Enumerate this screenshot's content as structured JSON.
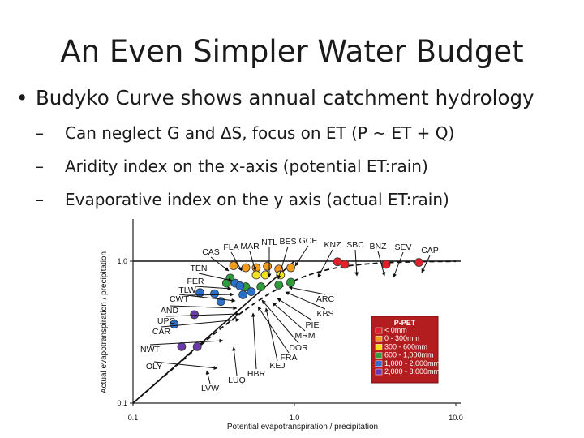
{
  "title": "An Even Simpler Water Budget",
  "bullet": "Budyko Curve shows annual catchment hydrology",
  "subs": [
    "Can neglect G and ΔS, focus on ET (P ~ ET + Q)",
    "Aridity index on the x-axis (potential ET:rain)",
    "Evaporative index on the y axis (actual ET:rain)"
  ],
  "chart_data": {
    "type": "scatter",
    "xlabel": "Potential evapotranspiration / precipitation",
    "ylabel": "Actual evapotranspiration / precipitation",
    "x_scale": "log",
    "y_scale": "log",
    "xlim": [
      0.1,
      10.0
    ],
    "ylim": [
      0.1,
      1.0
    ],
    "x_ticks": [
      "0.1",
      "1.0",
      "10.0"
    ],
    "y_ticks": [
      "0.1",
      "1.0"
    ],
    "legend": {
      "title": "P-PET",
      "placement": "right",
      "entries": [
        {
          "label": "< 0mm",
          "color": "#e0202a"
        },
        {
          "label": "0 - 300mm",
          "color": "#f29a1c"
        },
        {
          "label": "300 - 600mm",
          "color": "#f2e11c"
        },
        {
          "label": "600 - 1,000mm",
          "color": "#2e9e3a"
        },
        {
          "label": "1,000 - 2,000mm",
          "color": "#2a6fc9"
        },
        {
          "label": "2,000 - 3,000mm",
          "color": "#6a3aa8"
        }
      ]
    },
    "points": [
      {
        "x": 0.42,
        "y": 0.93,
        "group": "0 - 300mm"
      },
      {
        "x": 0.5,
        "y": 0.9,
        "group": "0 - 300mm"
      },
      {
        "x": 0.58,
        "y": 0.9,
        "group": "0 - 300mm"
      },
      {
        "x": 0.68,
        "y": 0.92,
        "group": "0 - 300mm"
      },
      {
        "x": 0.8,
        "y": 0.88,
        "group": "0 - 300mm"
      },
      {
        "x": 0.95,
        "y": 0.9,
        "group": "0 - 300mm"
      },
      {
        "x": 0.58,
        "y": 0.8,
        "group": "300 - 600mm"
      },
      {
        "x": 0.66,
        "y": 0.8,
        "group": "300 - 600mm"
      },
      {
        "x": 0.82,
        "y": 0.8,
        "group": "300 - 600mm"
      },
      {
        "x": 0.4,
        "y": 0.76,
        "group": "600 - 1,000mm"
      },
      {
        "x": 0.38,
        "y": 0.7,
        "group": "600 - 1,000mm"
      },
      {
        "x": 0.5,
        "y": 0.66,
        "group": "600 - 1,000mm"
      },
      {
        "x": 0.62,
        "y": 0.66,
        "group": "600 - 1,000mm"
      },
      {
        "x": 0.8,
        "y": 0.68,
        "group": "600 - 1,000mm"
      },
      {
        "x": 0.95,
        "y": 0.71,
        "group": "600 - 1,000mm"
      },
      {
        "x": 0.43,
        "y": 0.7,
        "group": "1,000 - 2,000mm"
      },
      {
        "x": 0.46,
        "y": 0.67,
        "group": "1,000 - 2,000mm"
      },
      {
        "x": 0.48,
        "y": 0.58,
        "group": "1,000 - 2,000mm"
      },
      {
        "x": 0.54,
        "y": 0.61,
        "group": "1,000 - 2,000mm"
      },
      {
        "x": 0.26,
        "y": 0.6,
        "group": "1,000 - 2,000mm"
      },
      {
        "x": 0.32,
        "y": 0.59,
        "group": "1,000 - 2,000mm"
      },
      {
        "x": 0.35,
        "y": 0.52,
        "group": "1,000 - 2,000mm"
      },
      {
        "x": 0.18,
        "y": 0.36,
        "group": "1,000 - 2,000mm"
      },
      {
        "x": 0.24,
        "y": 0.42,
        "group": "2,000 - 3,000mm"
      },
      {
        "x": 0.2,
        "y": 0.25,
        "group": "2,000 - 3,000mm"
      },
      {
        "x": 0.25,
        "y": 0.25,
        "group": "2,000 - 3,000mm"
      },
      {
        "x": 1.85,
        "y": 0.99,
        "group": "< 0mm"
      },
      {
        "x": 2.05,
        "y": 0.95,
        "group": "< 0mm"
      },
      {
        "x": 3.7,
        "y": 0.95,
        "group": "< 0mm"
      },
      {
        "x": 5.9,
        "y": 0.98,
        "group": "< 0mm"
      }
    ],
    "site_labels": [
      "CAS",
      "FLA",
      "MAR",
      "NTL",
      "BES",
      "GCE",
      "KNZ",
      "SBC",
      "BNZ",
      "SEV",
      "CAP",
      "TEN",
      "FER",
      "TLW",
      "CWT",
      "AND",
      "UPC",
      "CAR",
      "NWT",
      "OLY",
      "LVW",
      "LUQ",
      "HBR",
      "KEJ",
      "FRA",
      "DOR",
      "MRM",
      "PIE",
      "KBS",
      "ARC"
    ]
  }
}
